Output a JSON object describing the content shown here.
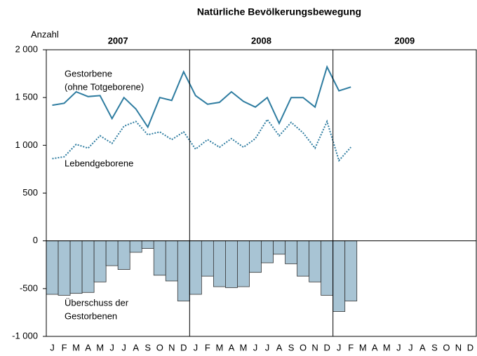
{
  "chart_data": {
    "type": "combo",
    "title": "Natürliche Bevölkerungsbewegung",
    "y_label": "Anzahl",
    "categories": [
      "J",
      "F",
      "M",
      "A",
      "M",
      "J",
      "J",
      "A",
      "S",
      "O",
      "N",
      "D",
      "J",
      "F",
      "M",
      "A",
      "M",
      "J",
      "J",
      "A",
      "S",
      "O",
      "N",
      "D",
      "J",
      "F",
      "M",
      "A",
      "M",
      "J",
      "J",
      "A",
      "S",
      "O",
      "N",
      "D"
    ],
    "years": [
      "2007",
      "2008",
      "2009"
    ],
    "series": [
      {
        "name": "Überschuss der Gestorbenen",
        "type": "bar",
        "color": "#a8c4d4",
        "values": [
          -560,
          -570,
          -550,
          -540,
          -430,
          -260,
          -300,
          -120,
          -80,
          -360,
          -420,
          -630,
          -560,
          -370,
          -480,
          -490,
          -480,
          -330,
          -230,
          -140,
          -240,
          -370,
          -430,
          -570,
          -740,
          -630,
          null,
          null,
          null,
          null,
          null,
          null,
          null,
          null,
          null,
          null
        ]
      },
      {
        "name": "Gestorbene (ohne Totgeborene)",
        "type": "line",
        "color": "#2e7ca0",
        "dash": false,
        "values": [
          1420,
          1440,
          1560,
          1510,
          1520,
          1280,
          1500,
          1380,
          1190,
          1500,
          1470,
          1770,
          1520,
          1430,
          1450,
          1560,
          1460,
          1400,
          1500,
          1230,
          1500,
          1500,
          1400,
          1820,
          1570,
          1610,
          null,
          null,
          null,
          null,
          null,
          null,
          null,
          null,
          null,
          null
        ]
      },
      {
        "name": "Lebendgeborene",
        "type": "line",
        "color": "#2e7ca0",
        "dash": true,
        "values": [
          860,
          880,
          1010,
          970,
          1100,
          1020,
          1200,
          1250,
          1110,
          1140,
          1060,
          1140,
          960,
          1060,
          980,
          1070,
          980,
          1070,
          1270,
          1100,
          1240,
          1130,
          970,
          1250,
          840,
          980,
          null,
          null,
          null,
          null,
          null,
          null,
          null,
          null,
          null,
          null
        ]
      }
    ],
    "annotations": [
      "Gestorbene",
      "(ohne Totgeborene)",
      "Lebendgeborene",
      "Überschuss der",
      "Gestorbenen"
    ],
    "ylim": [
      -1000,
      2000
    ],
    "yticks": [
      {
        "value": 2000,
        "label": "2 000"
      },
      {
        "value": 1500,
        "label": "1 500"
      },
      {
        "value": 1000,
        "label": "1 000"
      },
      500,
      0,
      -500,
      {
        "value": -1000,
        "label": "-1 000"
      }
    ]
  }
}
